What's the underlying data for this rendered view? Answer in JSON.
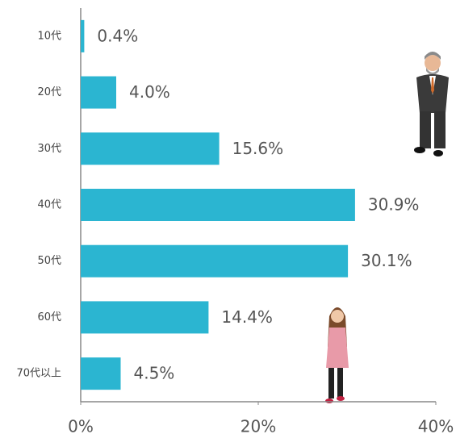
{
  "chart_data": {
    "type": "bar",
    "orientation": "horizontal",
    "categories": [
      "10代",
      "20代",
      "30代",
      "40代",
      "50代",
      "60代",
      "70代以上"
    ],
    "values": [
      0.4,
      4.0,
      15.6,
      30.9,
      30.1,
      14.4,
      4.5
    ],
    "value_labels": [
      "0.4%",
      "4.0%",
      "15.6%",
      "30.9%",
      "30.1%",
      "14.4%",
      "4.5%"
    ],
    "color": "#2bb5d1",
    "xlim": [
      0,
      40
    ],
    "xticks": [
      {
        "value": 0,
        "label": "0%"
      },
      {
        "value": 20,
        "label": "20%"
      },
      {
        "value": 40,
        "label": "40%"
      }
    ]
  }
}
